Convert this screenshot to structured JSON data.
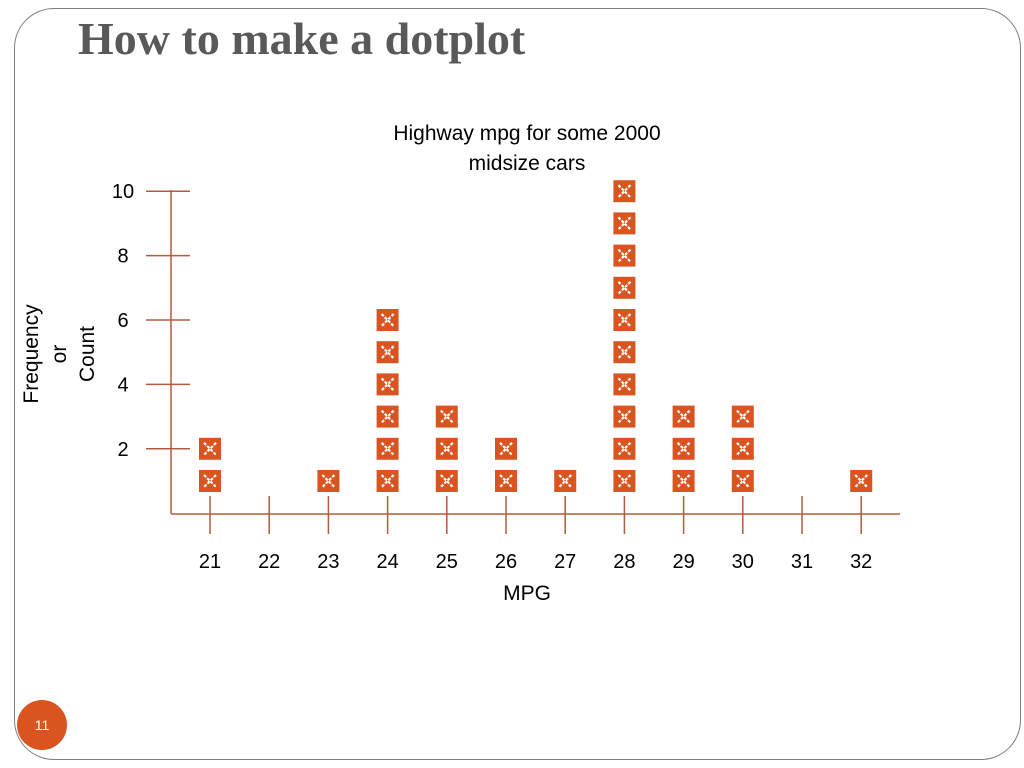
{
  "slide": {
    "title": "How to make a dotplot",
    "page_number": "11"
  },
  "colors": {
    "accent": "#d9541f",
    "axis": "#b55a3c",
    "title": "#595959",
    "frame": "#7f7f7f"
  },
  "chart_data": {
    "type": "scatter",
    "subtype": "dotplot",
    "title": [
      "Highway mpg for some 2000",
      "midsize cars"
    ],
    "xlabel": "MPG",
    "ylabel": [
      "Frequency",
      "or",
      "Count"
    ],
    "x_categories": [
      21,
      22,
      23,
      24,
      25,
      26,
      27,
      28,
      29,
      30,
      31,
      32
    ],
    "counts": [
      2,
      0,
      1,
      6,
      3,
      2,
      1,
      10,
      3,
      3,
      0,
      1
    ],
    "y_ticks": [
      2,
      4,
      6,
      8,
      10
    ],
    "ylim": [
      0,
      10
    ],
    "marker": "x-box",
    "grid": false,
    "legend": "none"
  }
}
